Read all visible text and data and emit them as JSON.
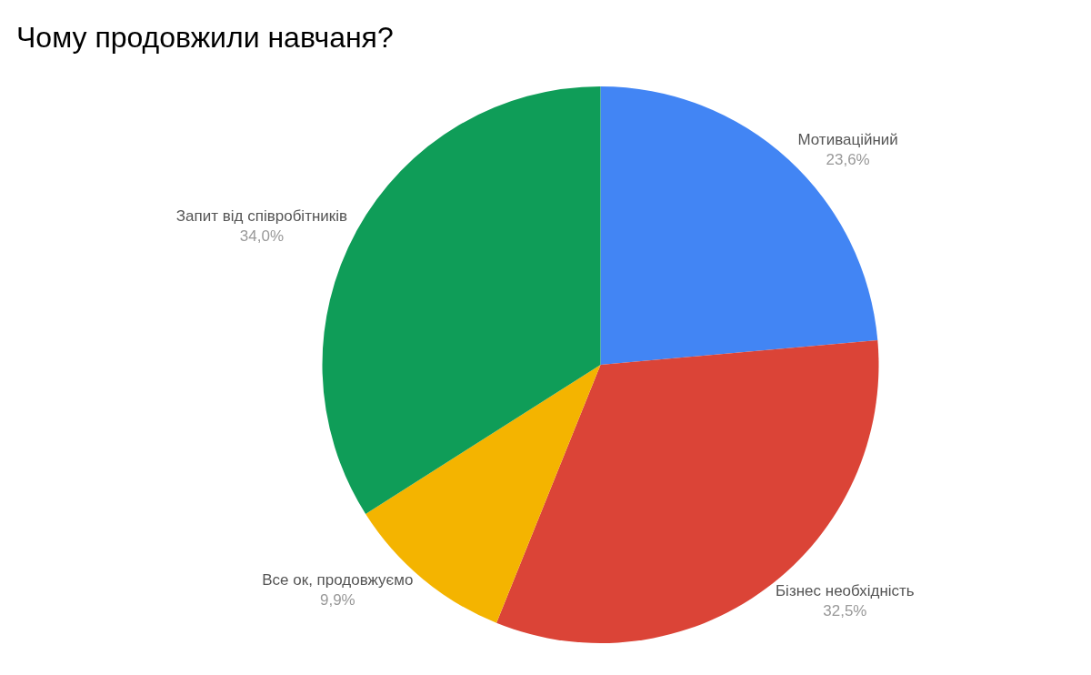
{
  "chart_data": {
    "type": "pie",
    "title": "Чому продовжили навчаня?",
    "categories": [
      "Мотиваційний",
      "Бізнес необхідність",
      "Все ок, продовжуємо",
      "Запит від співробітників"
    ],
    "values": [
      23.6,
      32.5,
      9.9,
      34.0
    ],
    "value_labels": [
      "23,6%",
      "32,5%",
      "9,9%",
      "34,0%"
    ],
    "colors": [
      "#4285f4",
      "#db4437",
      "#f4b400",
      "#0f9d58"
    ]
  }
}
